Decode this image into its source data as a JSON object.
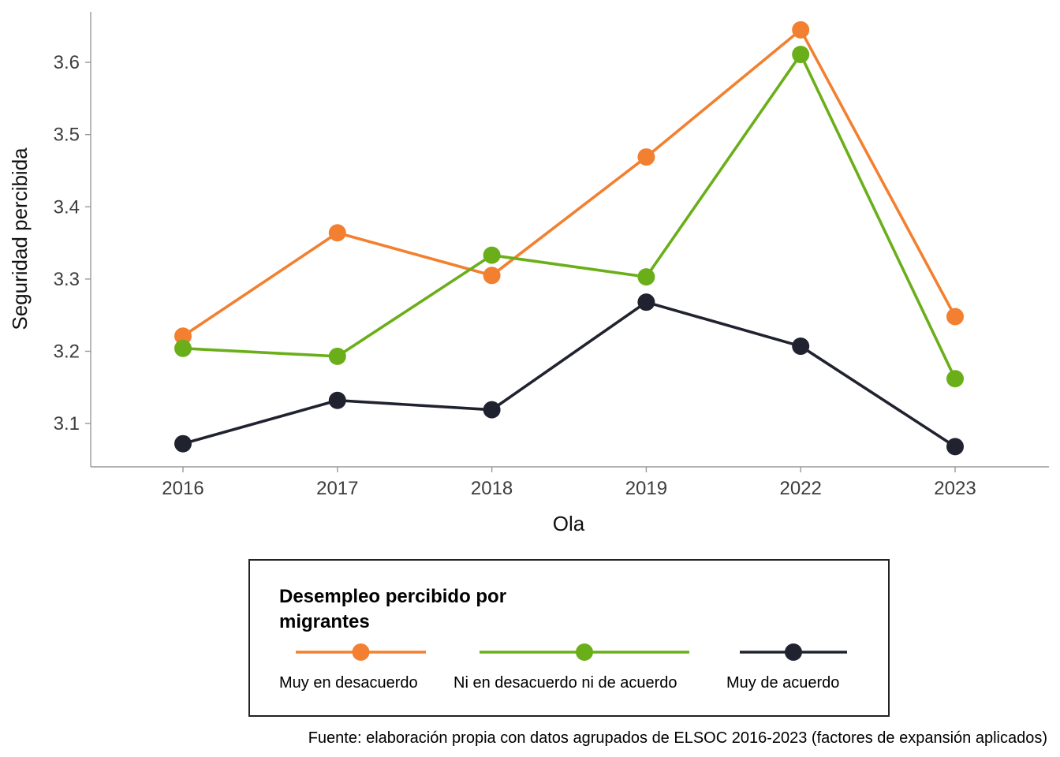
{
  "chart_data": {
    "type": "line",
    "categories": [
      "2016",
      "2017",
      "2018",
      "2019",
      "2022",
      "2023"
    ],
    "series": [
      {
        "name": "Muy en desacuerdo",
        "color": "#F28030",
        "values": [
          3.221,
          3.364,
          3.305,
          3.469,
          3.645,
          3.248
        ]
      },
      {
        "name": "Ni en desacuerdo ni de acuerdo",
        "color": "#6AAF1A",
        "values": [
          3.204,
          3.193,
          3.333,
          3.303,
          3.611,
          3.162
        ]
      },
      {
        "name": "Muy de acuerdo",
        "color": "#202230",
        "values": [
          3.072,
          3.132,
          3.119,
          3.268,
          3.207,
          3.068
        ]
      }
    ],
    "xlabel": "Ola",
    "ylabel": "Seguridad percibida",
    "ylim": [
      3.04,
      3.67
    ],
    "yticks": [
      3.1,
      3.2,
      3.3,
      3.4,
      3.5,
      3.6
    ],
    "ytick_labels": [
      "3.1",
      "3.2",
      "3.3",
      "3.4",
      "3.5",
      "3.6"
    ],
    "grid": false,
    "legend": {
      "title_line1": "Desempleo percibido por",
      "title_line2": "migrantes",
      "position": "bottom"
    },
    "caption": "Fuente: elaboración propia con datos agrupados de ELSOC 2016-2023 (factores de expansión aplicados)"
  }
}
